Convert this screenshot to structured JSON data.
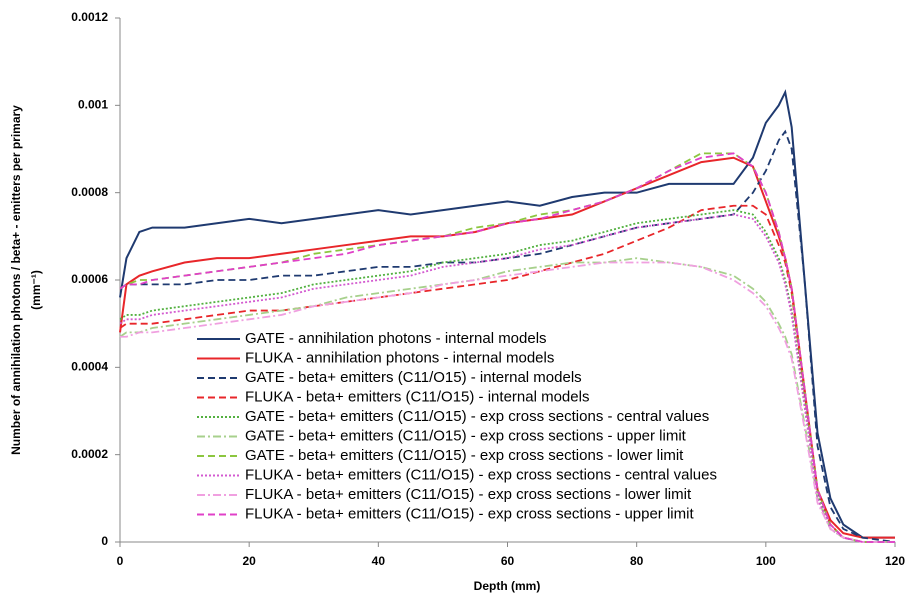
{
  "chart_data": {
    "type": "line",
    "xlabel": "Depth (mm)",
    "ylabel": [
      "Number of annihilation photons / beta+ - emitters per primary",
      "(mm⁻¹)"
    ],
    "x": [
      0,
      1,
      3,
      5,
      10,
      15,
      20,
      25,
      30,
      35,
      40,
      45,
      50,
      55,
      60,
      65,
      70,
      75,
      80,
      85,
      90,
      95,
      98,
      100,
      102,
      103,
      104,
      106,
      108,
      110,
      112,
      115,
      120
    ],
    "xlim": [
      0,
      120
    ],
    "xticks": [
      0,
      20,
      40,
      60,
      80,
      100,
      120
    ],
    "ylim": [
      0,
      0.0012
    ],
    "yticks": [
      0,
      0.0002,
      0.0004,
      0.0006,
      0.0008,
      0.001,
      0.0012
    ],
    "series": [
      {
        "name": "GATE - annihilation photons - internal models",
        "color": "#1f3a70",
        "dash": "solid",
        "values": [
          0.00056,
          0.00065,
          0.00071,
          0.00072,
          0.00072,
          0.00073,
          0.00074,
          0.00073,
          0.00074,
          0.00075,
          0.00076,
          0.00075,
          0.00076,
          0.00077,
          0.00078,
          0.00077,
          0.00079,
          0.0008,
          0.0008,
          0.00082,
          0.00082,
          0.00082,
          0.00088,
          0.00096,
          0.001,
          0.00103,
          0.00095,
          0.0006,
          0.00025,
          0.0001,
          4e-05,
          1e-05,
          1e-05
        ]
      },
      {
        "name": "FLUKA - annihilation photons - internal models",
        "color": "#e8262a",
        "dash": "solid",
        "values": [
          0.00048,
          0.00059,
          0.00061,
          0.00062,
          0.00064,
          0.00065,
          0.00065,
          0.00066,
          0.00067,
          0.00068,
          0.00069,
          0.0007,
          0.0007,
          0.00071,
          0.00073,
          0.00074,
          0.00075,
          0.00078,
          0.00081,
          0.00084,
          0.00087,
          0.00088,
          0.00086,
          0.00078,
          0.0007,
          0.00065,
          0.00058,
          0.00035,
          0.00012,
          5e-05,
          2e-05,
          1e-05,
          1e-05
        ]
      },
      {
        "name": "GATE - beta+ emitters (C11/O15) - internal models",
        "color": "#1f3a70",
        "dash": "dashed",
        "values": [
          0.00058,
          0.00059,
          0.00059,
          0.00059,
          0.00059,
          0.0006,
          0.0006,
          0.00061,
          0.00061,
          0.00062,
          0.00063,
          0.00063,
          0.00064,
          0.00064,
          0.00065,
          0.00066,
          0.00068,
          0.0007,
          0.00072,
          0.00073,
          0.00074,
          0.00075,
          0.0008,
          0.00085,
          0.00092,
          0.00094,
          0.0009,
          0.0006,
          0.00022,
          8e-05,
          3e-05,
          1e-05,
          0
        ]
      },
      {
        "name": "FLUKA - beta+ emitters (C11/O15) - internal models",
        "color": "#e8262a",
        "dash": "dashed",
        "values": [
          0.00049,
          0.0005,
          0.0005,
          0.0005,
          0.00051,
          0.00052,
          0.00053,
          0.00053,
          0.00054,
          0.00055,
          0.00056,
          0.00057,
          0.00058,
          0.00059,
          0.0006,
          0.00062,
          0.00064,
          0.00066,
          0.00069,
          0.00072,
          0.00076,
          0.00077,
          0.00077,
          0.00075,
          0.00068,
          0.00064,
          0.00057,
          0.00034,
          0.00012,
          4e-05,
          1e-05,
          0,
          0
        ]
      },
      {
        "name": "GATE - beta+ emitters (C11/O15) - exp cross sections - central values",
        "color": "#53b040",
        "dash": "dotted",
        "values": [
          0.00051,
          0.00052,
          0.00052,
          0.00053,
          0.00054,
          0.00055,
          0.00056,
          0.00057,
          0.00059,
          0.0006,
          0.00061,
          0.00062,
          0.00064,
          0.00065,
          0.00066,
          0.00068,
          0.00069,
          0.00071,
          0.00073,
          0.00074,
          0.00075,
          0.00076,
          0.00075,
          0.00071,
          0.00065,
          0.0006,
          0.00053,
          0.00032,
          0.00011,
          3e-05,
          1e-05,
          0,
          0
        ]
      },
      {
        "name": "GATE - beta+ emitters (C11/O15) - exp cross sections - upper limit",
        "color": "#a7d08c",
        "dash": "dashdot",
        "values": [
          0.00047,
          0.00048,
          0.00048,
          0.00049,
          0.0005,
          0.00051,
          0.00052,
          0.00053,
          0.00054,
          0.00056,
          0.00057,
          0.00058,
          0.00059,
          0.0006,
          0.00062,
          0.00063,
          0.00064,
          0.00064,
          0.00065,
          0.00064,
          0.00063,
          0.00061,
          0.00058,
          0.00055,
          0.0005,
          0.00047,
          0.00043,
          0.00027,
          0.0001,
          3e-05,
          1e-05,
          0,
          0
        ]
      },
      {
        "name": "GATE - beta+ emitters (C11/O15) - exp cross sections - lower limit",
        "color": "#8cc63f",
        "dash": "dashed",
        "values": [
          0.00058,
          0.00059,
          0.0006,
          0.0006,
          0.00061,
          0.00062,
          0.00063,
          0.00064,
          0.00066,
          0.00067,
          0.00068,
          0.00069,
          0.0007,
          0.00072,
          0.00073,
          0.00075,
          0.00076,
          0.00078,
          0.00081,
          0.00085,
          0.00089,
          0.00089,
          0.00086,
          0.0008,
          0.00071,
          0.00065,
          0.00058,
          0.00035,
          0.00012,
          4e-05,
          1e-05,
          0,
          0
        ]
      },
      {
        "name": "FLUKA - beta+ emitters (C11/O15) - exp cross sections - central values",
        "color": "#d35ad0",
        "dash": "dotted",
        "values": [
          0.0005,
          0.00051,
          0.00051,
          0.00052,
          0.00053,
          0.00054,
          0.00055,
          0.00056,
          0.00058,
          0.00059,
          0.0006,
          0.00061,
          0.00063,
          0.00064,
          0.00065,
          0.00067,
          0.00068,
          0.0007,
          0.00072,
          0.00073,
          0.00074,
          0.00075,
          0.00074,
          0.0007,
          0.00064,
          0.00059,
          0.00052,
          0.00031,
          0.0001,
          3e-05,
          1e-05,
          0,
          0
        ]
      },
      {
        "name": "FLUKA - beta+ emitters (C11/O15) - exp cross sections - lower limit",
        "color": "#f0a0e0",
        "dash": "dashdot",
        "values": [
          0.00047,
          0.00047,
          0.00048,
          0.00048,
          0.00049,
          0.0005,
          0.00051,
          0.00052,
          0.00054,
          0.00055,
          0.00056,
          0.00057,
          0.00059,
          0.0006,
          0.00061,
          0.00062,
          0.00063,
          0.00064,
          0.00064,
          0.00064,
          0.00063,
          0.0006,
          0.00057,
          0.00054,
          0.00049,
          0.00046,
          0.00042,
          0.00026,
          9e-05,
          3e-05,
          1e-05,
          0,
          0
        ]
      },
      {
        "name": "FLUKA - beta+ emitters (C11/O15) - exp cross sections - upper limit",
        "color": "#e040c8",
        "dash": "dashed",
        "values": [
          0.00058,
          0.00059,
          0.00059,
          0.0006,
          0.00061,
          0.00062,
          0.00063,
          0.00064,
          0.00065,
          0.00066,
          0.00068,
          0.00069,
          0.0007,
          0.00071,
          0.00073,
          0.00074,
          0.00076,
          0.00078,
          0.00081,
          0.00085,
          0.00088,
          0.00089,
          0.00086,
          0.0008,
          0.00071,
          0.00065,
          0.00058,
          0.00035,
          0.00012,
          4e-05,
          1e-05,
          0,
          0
        ]
      }
    ]
  }
}
